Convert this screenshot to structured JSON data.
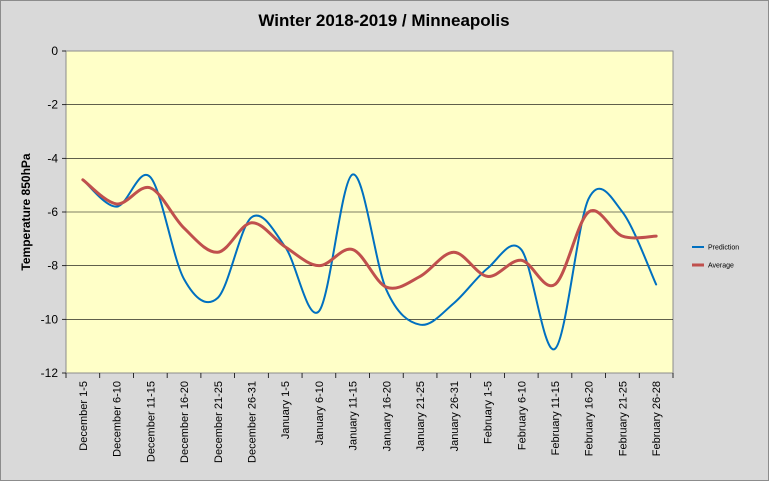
{
  "chart_data": {
    "type": "line",
    "title": "Winter 2018-2019 / Minneapolis",
    "ylabel": "Temperature 850hPa",
    "xlabel": "",
    "ylim": [
      -12,
      0
    ],
    "yticks": [
      0,
      -2,
      -4,
      -6,
      -8,
      -10,
      -12
    ],
    "grid": "horizontal",
    "legend_position": "right",
    "categories": [
      "December 1-5",
      "December 6-10",
      "December 11-15",
      "December 16-20",
      "December 21-25",
      "December 26-31",
      "January 1-5",
      "January 6-10",
      "January 11-15",
      "January 16-20",
      "January 21-25",
      "January 26-31",
      "February 1-5",
      "February 6-10",
      "February 11-15",
      "February 16-20",
      "February 21-25",
      "February 26-28"
    ],
    "series": [
      {
        "name": "Prediction",
        "color": "#0070c0",
        "values": [
          -4.8,
          -5.8,
          -4.7,
          -8.5,
          -9.2,
          -6.2,
          -7.3,
          -9.7,
          -4.6,
          -8.9,
          -10.2,
          -9.4,
          -8.1,
          -7.4,
          -11.1,
          -5.5,
          -6.0,
          -8.7
        ]
      },
      {
        "name": "Average",
        "color": "#c0504d",
        "values": [
          -4.8,
          -5.7,
          -5.1,
          -6.6,
          -7.5,
          -6.4,
          -7.3,
          -8.0,
          -7.4,
          -8.8,
          -8.4,
          -7.5,
          -8.4,
          -7.8,
          -8.7,
          -6.0,
          -6.9,
          -6.9
        ]
      }
    ]
  }
}
